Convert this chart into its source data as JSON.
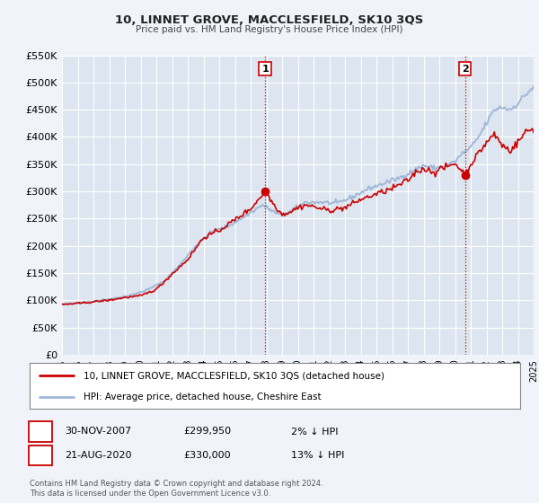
{
  "title": "10, LINNET GROVE, MACCLESFIELD, SK10 3QS",
  "subtitle": "Price paid vs. HM Land Registry's House Price Index (HPI)",
  "background_color": "#f0f4fa",
  "plot_bg_color": "#dde6f0",
  "grid_color": "#ffffff",
  "hpi_color": "#a0b8d8",
  "price_color": "#cc0000",
  "marker_color": "#cc0000",
  "xmin": 1995,
  "xmax": 2025,
  "ymin": 0,
  "ymax": 550000,
  "yticks": [
    0,
    50000,
    100000,
    150000,
    200000,
    250000,
    300000,
    350000,
    400000,
    450000,
    500000,
    550000
  ],
  "ytick_labels": [
    "£0",
    "£50K",
    "£100K",
    "£150K",
    "£200K",
    "£250K",
    "£300K",
    "£350K",
    "£400K",
    "£450K",
    "£500K",
    "£550K"
  ],
  "xticks": [
    1995,
    1996,
    1997,
    1998,
    1999,
    2000,
    2001,
    2002,
    2003,
    2004,
    2005,
    2006,
    2007,
    2008,
    2009,
    2010,
    2011,
    2012,
    2013,
    2014,
    2015,
    2016,
    2017,
    2018,
    2019,
    2020,
    2021,
    2022,
    2023,
    2024,
    2025
  ],
  "event1_x": 2007.92,
  "event1_y": 299950,
  "event1_label": "1",
  "event1_date": "30-NOV-2007",
  "event1_price": "£299,950",
  "event1_hpi": "2% ↓ HPI",
  "event2_x": 2020.64,
  "event2_y": 330000,
  "event2_label": "2",
  "event2_date": "21-AUG-2020",
  "event2_price": "£330,000",
  "event2_hpi": "13% ↓ HPI",
  "legend_line1": "10, LINNET GROVE, MACCLESFIELD, SK10 3QS (detached house)",
  "legend_line2": "HPI: Average price, detached house, Cheshire East",
  "footer1": "Contains HM Land Registry data © Crown copyright and database right 2024.",
  "footer2": "This data is licensed under the Open Government Licence v3.0."
}
